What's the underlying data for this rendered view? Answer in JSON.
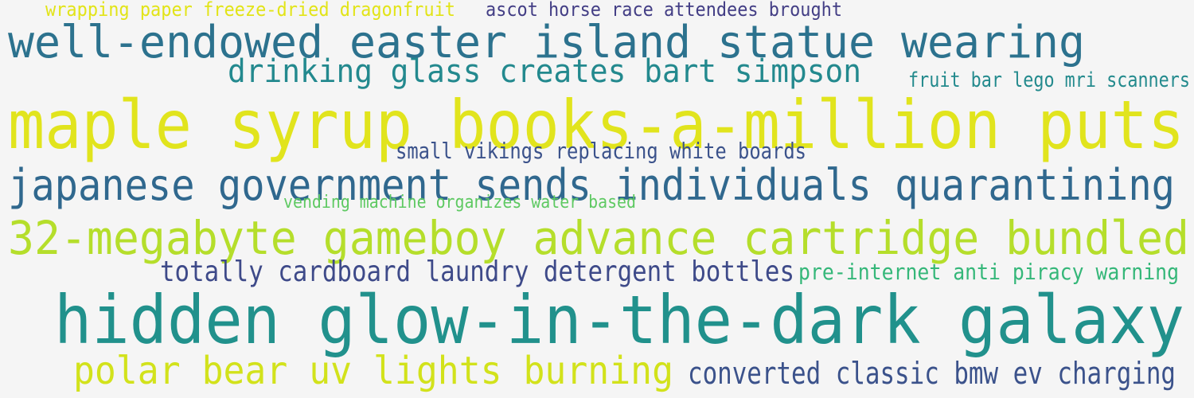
{
  "phrases": [
    {
      "text": "wrapping paper freeze-dried dragonfruit",
      "color": "#e2e418"
    },
    {
      "text": "ascot horse race attendees brought",
      "color": "#433e85"
    },
    {
      "text": "well-endowed easter island statue wearing",
      "color": "#2c728e"
    },
    {
      "text": "drinking glass creates bart simpson",
      "color": "#23898e"
    },
    {
      "text": "fruit bar lego mri scanners",
      "color": "#238a8d"
    },
    {
      "text": "maple syrup books-a-million puts",
      "color": "#e1e41d"
    },
    {
      "text": "small vikings replacing white boards",
      "color": "#3b528b"
    },
    {
      "text": "japanese government sends individuals quarantining",
      "color": "#30688e"
    },
    {
      "text": "vending machine organizes water based",
      "color": "#5ec962"
    },
    {
      "text": "32-megabyte gameboy advance cartridge bundled",
      "color": "#b5de2b"
    },
    {
      "text": "totally cardboard laundry detergent bottles",
      "color": "#3e4a89"
    },
    {
      "text": "pre-internet anti piracy warning",
      "color": "#35b779"
    },
    {
      "text": "hidden glow-in-the-dark galaxy",
      "color": "#21918c"
    },
    {
      "text": "polar bear uv lights burning",
      "color": "#d2e21b"
    },
    {
      "text": "converted classic bmw ev charging",
      "color": "#3b528b"
    }
  ]
}
